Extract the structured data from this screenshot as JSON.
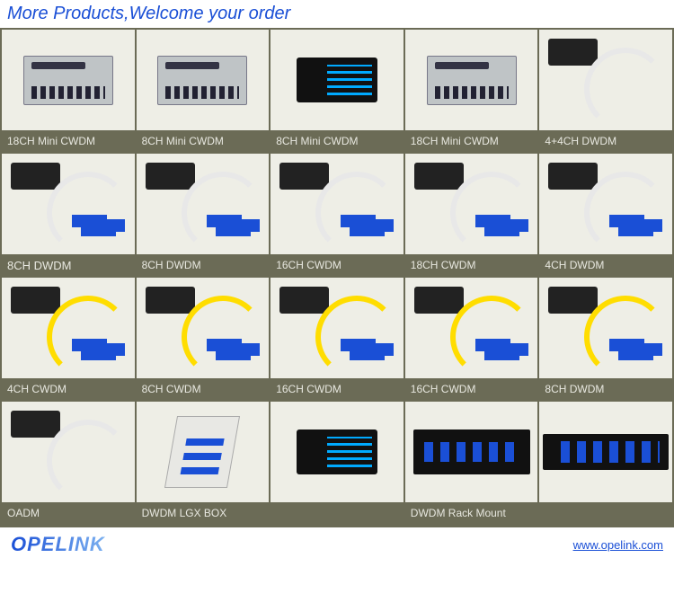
{
  "header_text": "More Products,Welcome your order",
  "header_color": "#1a4fd6",
  "grid_bg": "#6b6b56",
  "rows": [
    {
      "thumbs": [
        "gray-module",
        "gray-module",
        "black-box",
        "gray-module",
        "fibers white"
      ],
      "captions": [
        "18CH Mini CWDM",
        "8CH Mini CWDM",
        "8CH Mini CWDM",
        "18CH Mini CWDM",
        "4+4CH DWDM"
      ]
    },
    {
      "thumbs": [
        "fibers white blue-tips",
        "fibers white blue-tips",
        "fibers white blue-tips",
        "fibers white blue-tips",
        "fibers white blue-tips"
      ],
      "captions": [
        "8CH DWDM",
        "8CH DWDM",
        "16CH CWDM",
        "18CH CWDM",
        "4CH DWDM"
      ]
    },
    {
      "thumbs": [
        "fibers blue-tips",
        "fibers blue-tips",
        "fibers blue-tips",
        "fibers blue-tips",
        "fibers blue-tips"
      ],
      "captions": [
        "4CH CWDM",
        "8CH CWDM",
        "16CH CWDM",
        "16CH CWDM",
        "8CH DWDM"
      ]
    },
    {
      "thumbs": [
        "fibers white",
        "lgx",
        "black-box",
        "rack",
        "rack wide"
      ],
      "captions": [
        "OADM",
        "DWDM LGX BOX",
        "",
        "DWDM Rack Mount",
        ""
      ]
    }
  ],
  "footer": {
    "brand": "OPELINK",
    "url": "www.opelink.com"
  }
}
